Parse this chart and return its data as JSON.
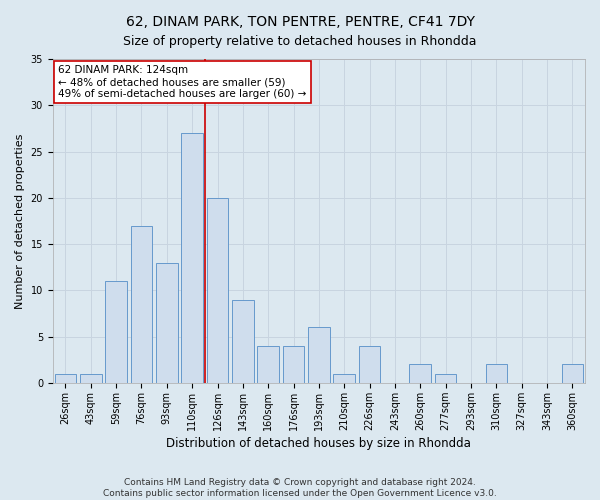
{
  "title": "62, DINAM PARK, TON PENTRE, PENTRE, CF41 7DY",
  "subtitle": "Size of property relative to detached houses in Rhondda",
  "xlabel": "Distribution of detached houses by size in Rhondda",
  "ylabel": "Number of detached properties",
  "categories": [
    "26sqm",
    "43sqm",
    "59sqm",
    "76sqm",
    "93sqm",
    "110sqm",
    "126sqm",
    "143sqm",
    "160sqm",
    "176sqm",
    "193sqm",
    "210sqm",
    "226sqm",
    "243sqm",
    "260sqm",
    "277sqm",
    "293sqm",
    "310sqm",
    "327sqm",
    "343sqm",
    "360sqm"
  ],
  "values": [
    1,
    1,
    11,
    17,
    13,
    27,
    20,
    9,
    4,
    4,
    6,
    1,
    4,
    0,
    2,
    1,
    0,
    2,
    0,
    0,
    2
  ],
  "bar_color": "#cfdded",
  "bar_edge_color": "#6699cc",
  "bar_width": 0.85,
  "vline_x": 5.5,
  "vline_color": "#cc0000",
  "annotation_text": "62 DINAM PARK: 124sqm\n← 48% of detached houses are smaller (59)\n49% of semi-detached houses are larger (60) →",
  "annotation_box_color": "white",
  "annotation_box_edge_color": "#cc0000",
  "ylim": [
    0,
    35
  ],
  "yticks": [
    0,
    5,
    10,
    15,
    20,
    25,
    30,
    35
  ],
  "grid_color": "#c8d4e0",
  "bg_color": "#dce8f0",
  "plot_bg_color": "#dce8f0",
  "footer_text": "Contains HM Land Registry data © Crown copyright and database right 2024.\nContains public sector information licensed under the Open Government Licence v3.0.",
  "title_fontsize": 10,
  "subtitle_fontsize": 9,
  "xlabel_fontsize": 8.5,
  "ylabel_fontsize": 8,
  "tick_fontsize": 7,
  "annotation_fontsize": 7.5,
  "footer_fontsize": 6.5
}
